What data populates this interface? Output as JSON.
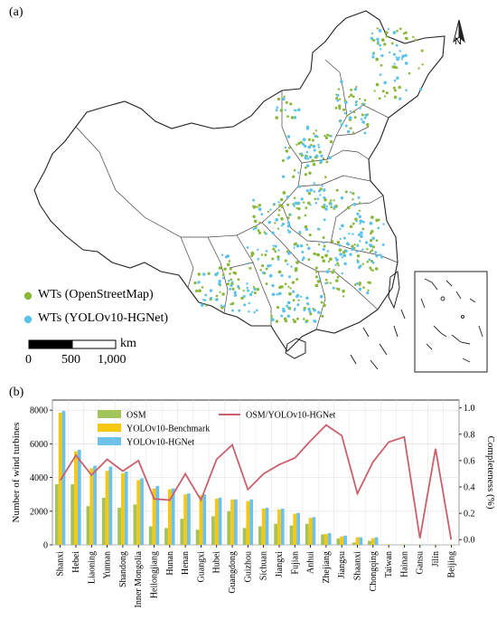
{
  "map": {
    "panel_label": "(a)",
    "north_label": "N",
    "legend": [
      {
        "label": "WTs (OpenStreetMap)",
        "color": "#8ab83a"
      },
      {
        "label": "WTs (YOLOv10-HGNet)",
        "color": "#5bc2ea"
      }
    ],
    "scale": {
      "unit": "km",
      "ticks": [
        "0",
        "500",
        "1,000"
      ]
    }
  },
  "chart_data": {
    "type": "bar",
    "panel_label": "(b)",
    "categories": [
      "Shanxi",
      "Hebei",
      "Liaoning",
      "Yunnan",
      "Shandong",
      "Inner Mongolia",
      "Heilongjiang",
      "Hunan",
      "Henan",
      "Guangxi",
      "Hubei",
      "Guangdong",
      "Guizhou",
      "Sichuan",
      "Jiangxi",
      "Fujian",
      "Anhui",
      "Zhejiang",
      "Jiangsu",
      "Shaanxi",
      "Chongqing",
      "Taiwan",
      "Hainan",
      "Gansu",
      "Jilin",
      "Beijing"
    ],
    "series": [
      {
        "name": "OSM",
        "color": "#a4c35a",
        "values": [
          3600,
          3600,
          2300,
          2800,
          2200,
          2400,
          1100,
          1000,
          1550,
          900,
          1700,
          2000,
          1000,
          1100,
          1250,
          1150,
          1250,
          620,
          380,
          140,
          240,
          15,
          20,
          0,
          10,
          0
        ]
      },
      {
        "name": "YOLOv10-Benchmark",
        "color": "#f7c80f",
        "values": [
          7850,
          5550,
          4550,
          4400,
          4250,
          3850,
          3350,
          3300,
          3000,
          2950,
          2750,
          2700,
          2600,
          2150,
          2100,
          1850,
          1600,
          650,
          500,
          450,
          400,
          30,
          25,
          20,
          15,
          10
        ]
      },
      {
        "name": "YOLOv10-HGNet",
        "color": "#6ec1e8",
        "values": [
          7950,
          5650,
          4700,
          4650,
          4350,
          3950,
          3500,
          3350,
          3050,
          3000,
          2800,
          2700,
          2700,
          2200,
          2150,
          1900,
          1650,
          700,
          550,
          450,
          450,
          20,
          25,
          30,
          15,
          5
        ]
      }
    ],
    "line_series": {
      "name": "OSM/YOLOv10-HGNet",
      "color": "#c9616d",
      "values": [
        0.45,
        0.64,
        0.49,
        0.61,
        0.52,
        0.6,
        0.31,
        0.3,
        0.5,
        0.3,
        0.61,
        0.72,
        0.38,
        0.5,
        0.57,
        0.62,
        0.75,
        0.87,
        0.79,
        0.35,
        0.59,
        0.74,
        0.78,
        0.01,
        0.69,
        0.0
      ]
    },
    "ylabel": "Number of wind turbines",
    "y2label": "Completeness (%)",
    "ylim": [
      0,
      8600
    ],
    "y2lim": [
      -0.04,
      1.06
    ],
    "yticks": [
      0,
      2000,
      4000,
      6000,
      8000
    ],
    "y2ticks": [
      "0.0",
      "0.2",
      "0.4",
      "0.6",
      "0.8",
      "1.0"
    ],
    "grid": true,
    "legend_placement": "top"
  }
}
